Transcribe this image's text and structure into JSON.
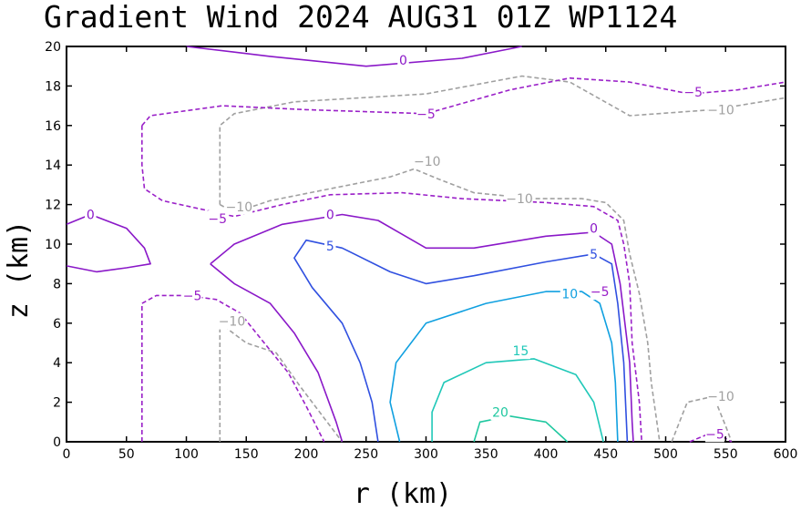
{
  "chart_data": {
    "type": "contour",
    "title": "Gradient Wind 2024 AUG31 01Z  WP1124",
    "xlabel": "r (km)",
    "ylabel": "z (km)",
    "xlim": [
      0,
      600
    ],
    "ylim": [
      0,
      20
    ],
    "xticks": [
      0,
      50,
      100,
      150,
      200,
      250,
      300,
      350,
      400,
      450,
      500,
      550,
      600
    ],
    "yticks": [
      0,
      2,
      4,
      6,
      8,
      10,
      12,
      14,
      16,
      18,
      20
    ],
    "colors": {
      "minus10": "#a0a0a0",
      "minus5": "#9a20c8",
      "zero": "#8a18c8",
      "five": "#3050e0",
      "ten": "#10a0e0",
      "fifteen": "#20c8b8",
      "twenty": "#20c8a0"
    },
    "contours": [
      {
        "level": -10,
        "style": "dashed",
        "color_key": "minus10",
        "points": [
          [
            128,
            0
          ],
          [
            128,
            6
          ],
          [
            150,
            5
          ],
          [
            175,
            4.5
          ],
          [
            195,
            2.8
          ],
          [
            215,
            1.2
          ],
          [
            230,
            0
          ]
        ]
      },
      {
        "level": -10,
        "style": "dashed",
        "color_key": "minus10",
        "points": [
          [
            128,
            12
          ],
          [
            128,
            16
          ],
          [
            140,
            16.6
          ],
          [
            190,
            17.2
          ],
          [
            300,
            17.6
          ],
          [
            380,
            18.5
          ],
          [
            420,
            18.2
          ],
          [
            470,
            16.5
          ],
          [
            540,
            16.8
          ],
          [
            600,
            17.4
          ]
        ]
      },
      {
        "level": -10,
        "style": "dashed",
        "color_key": "minus10",
        "points": [
          [
            128,
            12
          ],
          [
            140,
            11.6
          ],
          [
            170,
            12.2
          ],
          [
            220,
            12.8
          ],
          [
            270,
            13.4
          ],
          [
            290,
            13.8
          ],
          [
            310,
            13.3
          ],
          [
            340,
            12.6
          ],
          [
            390,
            12.3
          ],
          [
            430,
            12.3
          ],
          [
            450,
            12.1
          ],
          [
            465,
            11.2
          ],
          [
            470,
            9.5
          ],
          [
            478,
            7.5
          ],
          [
            485,
            5
          ],
          [
            488,
            3
          ],
          [
            495,
            0
          ]
        ]
      },
      {
        "level": -10,
        "style": "dashed",
        "color_key": "minus10",
        "points": [
          [
            505,
            0
          ],
          [
            518,
            2
          ],
          [
            540,
            2.3
          ],
          [
            550,
            0.8
          ],
          [
            555,
            0
          ]
        ]
      },
      {
        "level": -5,
        "style": "dashed",
        "color_key": "minus5",
        "points": [
          [
            63,
            0
          ],
          [
            63,
            7
          ],
          [
            75,
            7.4
          ],
          [
            100,
            7.4
          ],
          [
            125,
            7.2
          ],
          [
            145,
            6.5
          ],
          [
            165,
            5
          ],
          [
            185,
            3.5
          ],
          [
            200,
            1.8
          ],
          [
            215,
            0
          ]
        ]
      },
      {
        "level": -5,
        "style": "dashed",
        "color_key": "minus5",
        "points": [
          [
            63,
            16
          ],
          [
            63,
            14
          ],
          [
            65,
            12.8
          ],
          [
            80,
            12.2
          ],
          [
            110,
            11.8
          ],
          [
            140,
            11.4
          ],
          [
            180,
            12
          ],
          [
            220,
            12.5
          ],
          [
            280,
            12.6
          ],
          [
            330,
            12.3
          ],
          [
            400,
            12.1
          ],
          [
            440,
            11.9
          ],
          [
            460,
            11.2
          ],
          [
            465,
            10
          ],
          [
            470,
            8
          ],
          [
            472,
            5
          ],
          [
            478,
            2
          ],
          [
            480,
            0
          ]
        ]
      },
      {
        "level": -5,
        "style": "dashed",
        "color_key": "minus5",
        "points": [
          [
            63,
            16
          ],
          [
            70,
            16.5
          ],
          [
            130,
            17
          ],
          [
            200,
            16.8
          ],
          [
            300,
            16.6
          ],
          [
            370,
            17.8
          ],
          [
            420,
            18.4
          ],
          [
            470,
            18.2
          ],
          [
            520,
            17.6
          ],
          [
            560,
            17.8
          ],
          [
            600,
            18.2
          ]
        ]
      },
      {
        "level": -5,
        "style": "dashed",
        "color_key": "minus5",
        "points": [
          [
            520,
            0
          ],
          [
            540,
            0.5
          ],
          [
            555,
            0
          ]
        ]
      },
      {
        "level": 0,
        "style": "solid",
        "color_key": "zero",
        "points": [
          [
            0,
            11
          ],
          [
            20,
            11.5
          ],
          [
            50,
            10.8
          ],
          [
            65,
            9.8
          ],
          [
            70,
            9
          ],
          [
            50,
            8.8
          ],
          [
            25,
            8.6
          ],
          [
            0,
            8.9
          ]
        ]
      },
      {
        "level": 0,
        "style": "solid",
        "color_key": "zero",
        "points": [
          [
            100,
            20
          ],
          [
            170,
            19.5
          ],
          [
            250,
            19
          ],
          [
            330,
            19.4
          ],
          [
            380,
            20
          ]
        ]
      },
      {
        "level": 0,
        "style": "solid",
        "color_key": "zero",
        "points": [
          [
            120,
            9
          ],
          [
            140,
            10
          ],
          [
            180,
            11
          ],
          [
            230,
            11.5
          ],
          [
            260,
            11.2
          ],
          [
            300,
            9.8
          ],
          [
            340,
            9.8
          ],
          [
            400,
            10.4
          ],
          [
            440,
            10.6
          ],
          [
            455,
            10
          ],
          [
            462,
            8
          ],
          [
            470,
            4
          ],
          [
            472,
            1
          ],
          [
            473,
            0
          ]
        ]
      },
      {
        "level": 0,
        "style": "solid",
        "color_key": "zero",
        "points": [
          [
            120,
            9
          ],
          [
            140,
            8
          ],
          [
            170,
            7
          ],
          [
            190,
            5.5
          ],
          [
            210,
            3.5
          ],
          [
            225,
            1
          ],
          [
            230,
            0
          ]
        ]
      },
      {
        "level": 5,
        "style": "solid",
        "color_key": "five",
        "points": [
          [
            260,
            0
          ],
          [
            255,
            2
          ],
          [
            245,
            4
          ],
          [
            230,
            6
          ],
          [
            205,
            7.8
          ],
          [
            190,
            9.3
          ],
          [
            200,
            10.2
          ],
          [
            230,
            9.8
          ],
          [
            270,
            8.6
          ],
          [
            300,
            8
          ],
          [
            340,
            8.4
          ],
          [
            400,
            9.1
          ],
          [
            440,
            9.5
          ],
          [
            455,
            9
          ],
          [
            460,
            7
          ],
          [
            465,
            4
          ],
          [
            468,
            0
          ]
        ]
      },
      {
        "level": 10,
        "style": "solid",
        "color_key": "ten",
        "points": [
          [
            278,
            0
          ],
          [
            270,
            2
          ],
          [
            275,
            4
          ],
          [
            300,
            6
          ],
          [
            350,
            7
          ],
          [
            400,
            7.6
          ],
          [
            430,
            7.6
          ],
          [
            445,
            7
          ],
          [
            455,
            5
          ],
          [
            458,
            3
          ],
          [
            460,
            0
          ]
        ]
      },
      {
        "level": 15,
        "style": "solid",
        "color_key": "fifteen",
        "points": [
          [
            305,
            0
          ],
          [
            305,
            1.5
          ],
          [
            315,
            3
          ],
          [
            350,
            4
          ],
          [
            390,
            4.2
          ],
          [
            425,
            3.4
          ],
          [
            440,
            2
          ],
          [
            448,
            0
          ]
        ]
      },
      {
        "level": 20,
        "style": "solid",
        "color_key": "twenty",
        "points": [
          [
            340,
            0
          ],
          [
            345,
            1
          ],
          [
            370,
            1.3
          ],
          [
            400,
            1
          ],
          [
            418,
            0
          ]
        ]
      }
    ],
    "contour_labels": [
      {
        "text": "0",
        "x": 281,
        "y": 19.3,
        "color_key": "zero"
      },
      {
        "text": "-5",
        "x": 523,
        "y": 17.7,
        "color_key": "minus5"
      },
      {
        "text": "-5",
        "x": 300,
        "y": 16.6,
        "color_key": "minus5"
      },
      {
        "text": "-10",
        "x": 546,
        "y": 16.8,
        "color_key": "minus10"
      },
      {
        "text": "-10",
        "x": 301,
        "y": 14.2,
        "color_key": "minus10"
      },
      {
        "text": "-10",
        "x": 378,
        "y": 12.3,
        "color_key": "minus10"
      },
      {
        "text": "-10",
        "x": 144,
        "y": 11.9,
        "color_key": "minus10"
      },
      {
        "text": "-5",
        "x": 126,
        "y": 11.3,
        "color_key": "minus5"
      },
      {
        "text": "0",
        "x": 20,
        "y": 11.5,
        "color_key": "zero"
      },
      {
        "text": "0",
        "x": 220,
        "y": 11.5,
        "color_key": "zero"
      },
      {
        "text": "0",
        "x": 440,
        "y": 10.8,
        "color_key": "zero"
      },
      {
        "text": "5",
        "x": 220,
        "y": 9.9,
        "color_key": "five"
      },
      {
        "text": "5",
        "x": 440,
        "y": 9.5,
        "color_key": "five"
      },
      {
        "text": "-5",
        "x": 445,
        "y": 7.6,
        "color_key": "minus5"
      },
      {
        "text": "-5",
        "x": 105,
        "y": 7.4,
        "color_key": "minus5"
      },
      {
        "text": "10",
        "x": 420,
        "y": 7.5,
        "color_key": "ten"
      },
      {
        "text": "-10",
        "x": 138,
        "y": 6.1,
        "color_key": "minus10"
      },
      {
        "text": "15",
        "x": 379,
        "y": 4.6,
        "color_key": "fifteen"
      },
      {
        "text": "-10",
        "x": 546,
        "y": 2.3,
        "color_key": "minus10"
      },
      {
        "text": "20",
        "x": 362,
        "y": 1.5,
        "color_key": "twenty"
      },
      {
        "text": "-5",
        "x": 541,
        "y": 0.4,
        "color_key": "minus5"
      }
    ]
  }
}
